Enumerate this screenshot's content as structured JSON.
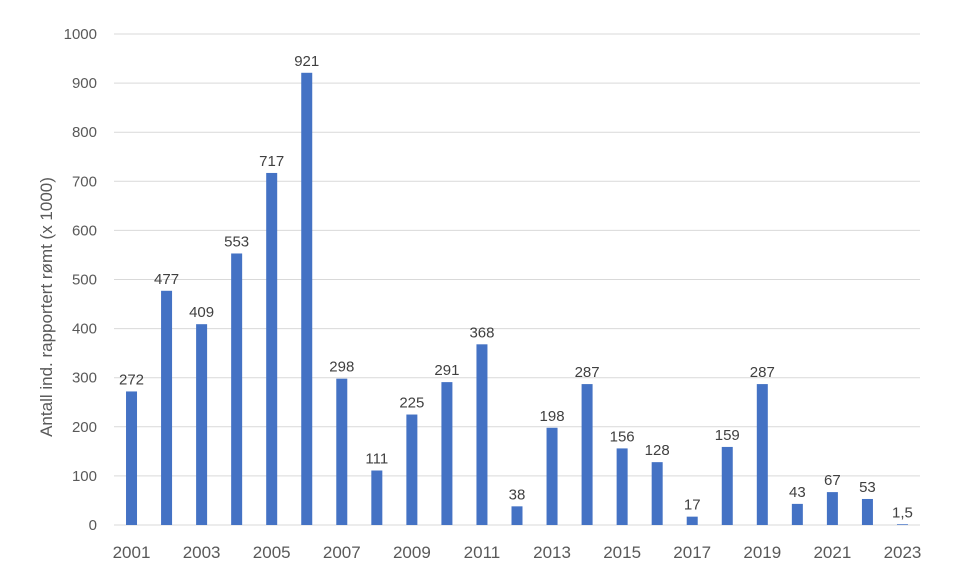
{
  "chart_data": {
    "type": "bar",
    "title": "",
    "xlabel": "",
    "ylabel": "Antall ind. rapportert rømt (x 1000)",
    "ylim": [
      0,
      1000
    ],
    "ytick_step": 100,
    "grid": true,
    "bar_color": "#4472C4",
    "grid_color": "#D9D9D9",
    "categories": [
      "2001",
      "2002",
      "2003",
      "2004",
      "2005",
      "2006",
      "2007",
      "2008",
      "2009",
      "2010",
      "2011",
      "2012",
      "2013",
      "2014",
      "2015",
      "2016",
      "2017",
      "2018",
      "2019",
      "2020",
      "2021",
      "2022",
      "2023"
    ],
    "values": [
      272,
      477,
      409,
      553,
      717,
      921,
      298,
      111,
      225,
      291,
      368,
      38,
      198,
      287,
      156,
      128,
      17,
      159,
      287,
      43,
      67,
      53,
      1.5
    ],
    "value_labels": [
      "272",
      "477",
      "409",
      "553",
      "717",
      "921",
      "298",
      "111",
      "225",
      "291",
      "368",
      "38",
      "198",
      "287",
      "156",
      "128",
      "17",
      "159",
      "287",
      "43",
      "67",
      "53",
      "1,5"
    ],
    "x_tick_labels": [
      "2001",
      "",
      "2003",
      "",
      "2005",
      "",
      "2007",
      "",
      "2009",
      "",
      "2011",
      "",
      "2013",
      "",
      "2015",
      "",
      "2017",
      "",
      "2019",
      "",
      "2021",
      "",
      "2023"
    ],
    "y_tick_labels": [
      "0",
      "100",
      "200",
      "300",
      "400",
      "500",
      "600",
      "700",
      "800",
      "900",
      "1000"
    ]
  }
}
